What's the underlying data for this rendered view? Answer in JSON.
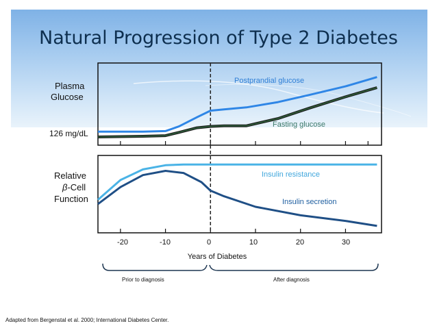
{
  "title": "Natural Progression of Type 2 Diabetes",
  "colors": {
    "banner": "#9cc4ec",
    "postprandial": "#2f86e6",
    "fasting": "#2f5d3a",
    "resistance": "#4ab3e6",
    "secretion": "#1f4f86",
    "frame": "#111111",
    "diagnosis_line": "#222222"
  },
  "top_panel": {
    "y_label_line1": "Plasma",
    "y_label_line2": "Glucose",
    "threshold_label": "126 mg/dL",
    "postprandial_label": "Postprandial glucose",
    "fasting_label": "Fasting glucose"
  },
  "bottom_panel": {
    "y_label_line1": "Relative",
    "y_label_beta": "β",
    "y_label_line2_rest": "-Cell",
    "y_label_line3": "Function",
    "resistance_label": "Insulin resistance",
    "secretion_label": "Insulin secretion"
  },
  "x_axis": {
    "label": "Years of Diabetes",
    "ticks": [
      "-20",
      "-10",
      "0",
      "10",
      "20",
      "30"
    ]
  },
  "brackets": {
    "prior": "Prior to diagnosis",
    "after": "After diagnosis"
  },
  "footnote": "Adapted from Bergenstal et al. 2000; International Diabetes Center.",
  "chart_data": [
    {
      "type": "line",
      "title": "Plasma Glucose",
      "xlabel": "Years of Diabetes",
      "ylabel": "Plasma Glucose",
      "xlim": [
        -25,
        38
      ],
      "ylim": [
        0,
        100
      ],
      "threshold_label": "126 mg/dL",
      "series": [
        {
          "name": "Postprandial glucose",
          "x": [
            -25,
            -15,
            -10,
            -7,
            -3,
            0,
            3,
            8,
            15,
            22,
            30,
            37
          ],
          "values": [
            8,
            8,
            9,
            16,
            30,
            40,
            42,
            45,
            53,
            64,
            77,
            91
          ]
        },
        {
          "name": "Fasting glucose",
          "x": [
            -25,
            -15,
            -10,
            -7,
            -3,
            0,
            3,
            8,
            15,
            22,
            30,
            37
          ],
          "values": [
            0,
            1,
            2,
            7,
            14,
            16,
            17,
            17,
            28,
            44,
            61,
            75
          ]
        }
      ]
    },
    {
      "type": "line",
      "title": "Relative β-Cell Function",
      "xlabel": "Years of Diabetes",
      "ylabel": "Relative β-Cell Function",
      "xlim": [
        -25,
        38
      ],
      "ylim": [
        0,
        100
      ],
      "series": [
        {
          "name": "Insulin resistance",
          "x": [
            -25,
            -20,
            -15,
            -10,
            -6,
            -2,
            2,
            10,
            20,
            30,
            37
          ],
          "values": [
            42,
            70,
            85,
            91,
            92,
            92,
            92,
            92,
            92,
            92,
            92
          ]
        },
        {
          "name": "Insulin secretion",
          "x": [
            -25,
            -20,
            -15,
            -10,
            -6,
            -2,
            0,
            3,
            10,
            20,
            30,
            37
          ],
          "values": [
            36,
            60,
            77,
            83,
            80,
            67,
            55,
            47,
            32,
            20,
            12,
            5
          ]
        }
      ]
    }
  ]
}
